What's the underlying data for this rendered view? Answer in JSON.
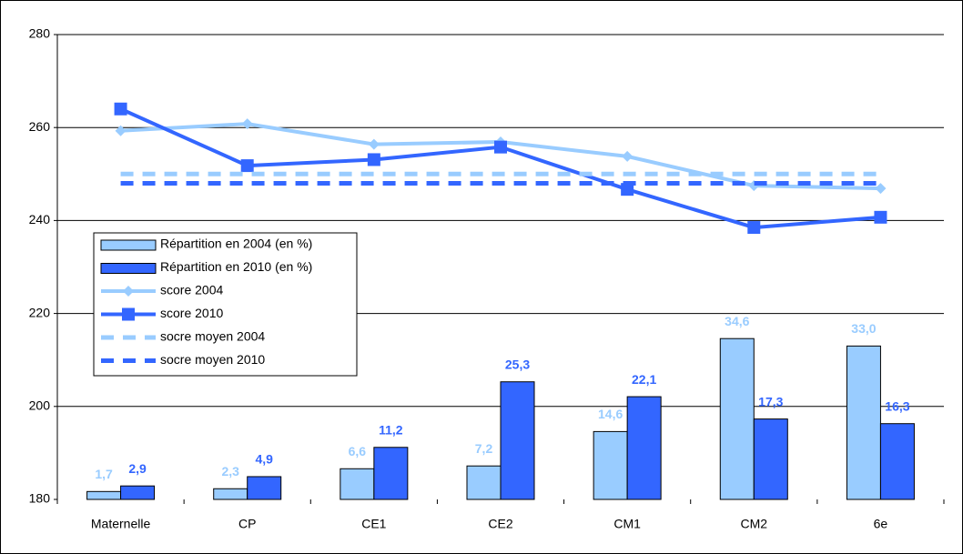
{
  "chart_data": {
    "type": "bar",
    "categories": [
      "Maternelle",
      "CP",
      "CE1",
      "CE2",
      "CM1",
      "CM2",
      "6e"
    ],
    "ylim": [
      180,
      280
    ],
    "yticks": [
      180,
      200,
      220,
      240,
      260,
      280
    ],
    "y2lim": [
      0,
      100
    ],
    "grid": true,
    "legend": "left",
    "series": [
      {
        "name": "Répartition en 2004 (en %)",
        "type": "bar",
        "axis": "y2",
        "color": "#99ccff",
        "values": [
          1.7,
          2.3,
          6.6,
          7.2,
          14.6,
          34.6,
          33.0
        ],
        "value_labels": [
          "1,7",
          "2,3",
          "6,6",
          "7,2",
          "14,6",
          "34,6",
          "33,0"
        ]
      },
      {
        "name": "Répartition en 2010 (en %)",
        "type": "bar",
        "axis": "y2",
        "color": "#3366ff",
        "values": [
          2.9,
          4.9,
          11.2,
          25.3,
          22.1,
          17.3,
          16.3
        ],
        "value_labels": [
          "2,9",
          "4,9",
          "11,2",
          "25,3",
          "22,1",
          "17,3",
          "16,3"
        ]
      },
      {
        "name": "score 2004",
        "type": "line",
        "marker": "diamond",
        "color": "#99ccff",
        "values": [
          259.3,
          260.8,
          256.4,
          256.9,
          253.8,
          247.5,
          246.9
        ]
      },
      {
        "name": "score 2010",
        "type": "line",
        "marker": "square",
        "color": "#3366ff",
        "values": [
          264,
          251.8,
          253.1,
          255.8,
          246.7,
          238.5,
          240.7
        ]
      },
      {
        "name": "socre moyen 2004",
        "type": "line",
        "dashed": true,
        "color": "#99ccff",
        "values": [
          250,
          250,
          250,
          250,
          250,
          250,
          250
        ]
      },
      {
        "name": "socre moyen 2010",
        "type": "line",
        "dashed": true,
        "color": "#3366ff",
        "values": [
          248,
          248,
          248,
          248,
          248,
          248,
          248
        ]
      }
    ]
  }
}
